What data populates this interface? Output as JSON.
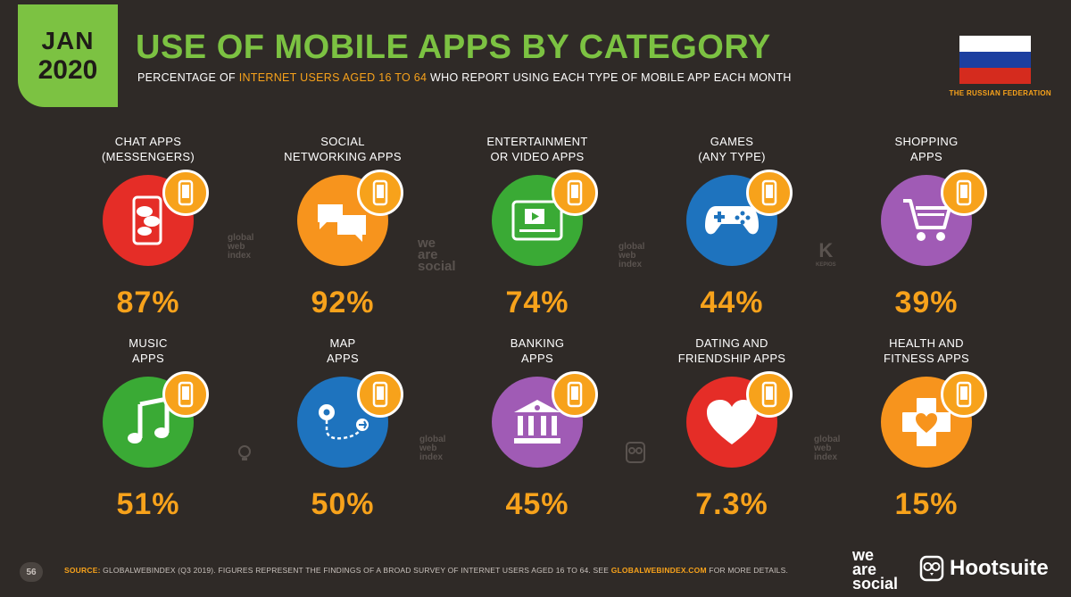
{
  "header": {
    "month": "JAN",
    "year": "2020",
    "title": "USE OF MOBILE APPS BY CATEGORY",
    "subtitle_pre": "PERCENTAGE OF ",
    "subtitle_highlight": "INTERNET USERS AGED 16 TO 64",
    "subtitle_post": " WHO REPORT USING EACH TYPE OF MOBILE APP EACH MONTH",
    "country": "THE RUSSIAN FEDERATION"
  },
  "colors": {
    "accent_green": "#7cc242",
    "accent_orange": "#f7a21b",
    "background": "#2f2a27",
    "flag": [
      "#ffffff",
      "#1c3fa0",
      "#d52b1e"
    ]
  },
  "categories": [
    {
      "line1": "CHAT APPS",
      "line2": "(MESSENGERS)",
      "value": "87%",
      "icon": "chat-bubbles-icon",
      "color": "#e52d27"
    },
    {
      "line1": "SOCIAL",
      "line2": "NETWORKING APPS",
      "value": "92%",
      "icon": "speech-bubbles-icon",
      "color": "#f7941d"
    },
    {
      "line1": "ENTERTAINMENT",
      "line2": "OR VIDEO APPS",
      "value": "74%",
      "icon": "video-player-icon",
      "color": "#3aaa35"
    },
    {
      "line1": "GAMES",
      "line2": "(ANY TYPE)",
      "value": "44%",
      "icon": "gamepad-icon",
      "color": "#1e73be"
    },
    {
      "line1": "SHOPPING",
      "line2": "APPS",
      "value": "39%",
      "icon": "shopping-cart-icon",
      "color": "#a05bb5"
    },
    {
      "line1": "MUSIC",
      "line2": "APPS",
      "value": "51%",
      "icon": "music-note-icon",
      "color": "#3aaa35"
    },
    {
      "line1": "MAP",
      "line2": "APPS",
      "value": "50%",
      "icon": "map-route-icon",
      "color": "#1e73be"
    },
    {
      "line1": "BANKING",
      "line2": "APPS",
      "value": "45%",
      "icon": "bank-icon",
      "color": "#a05bb5"
    },
    {
      "line1": "DATING AND",
      "line2": "FRIENDSHIP APPS",
      "value": "7.3%",
      "icon": "heart-icon",
      "color": "#e52d27"
    },
    {
      "line1": "HEALTH AND",
      "line2": "FITNESS APPS",
      "value": "15%",
      "icon": "health-cross-icon",
      "color": "#f7941d"
    }
  ],
  "watermarks": {
    "gwi": [
      "global",
      "web",
      "index"
    ],
    "was": [
      "we",
      "are",
      "social"
    ],
    "kepios": "KEPIOS"
  },
  "footer": {
    "page_number": "56",
    "source_label": "SOURCE:",
    "source_text": " GLOBALWEBINDEX (Q3 2019). FIGURES REPRESENT THE FINDINGS OF A BROAD SURVEY OF INTERNET USERS AGED 16 TO 64. SEE ",
    "source_link": "GLOBALWEBINDEX.COM",
    "source_end": " FOR MORE DETAILS.",
    "brand_was": [
      "we",
      "are",
      "social"
    ],
    "brand_hootsuite": "Hootsuite"
  }
}
